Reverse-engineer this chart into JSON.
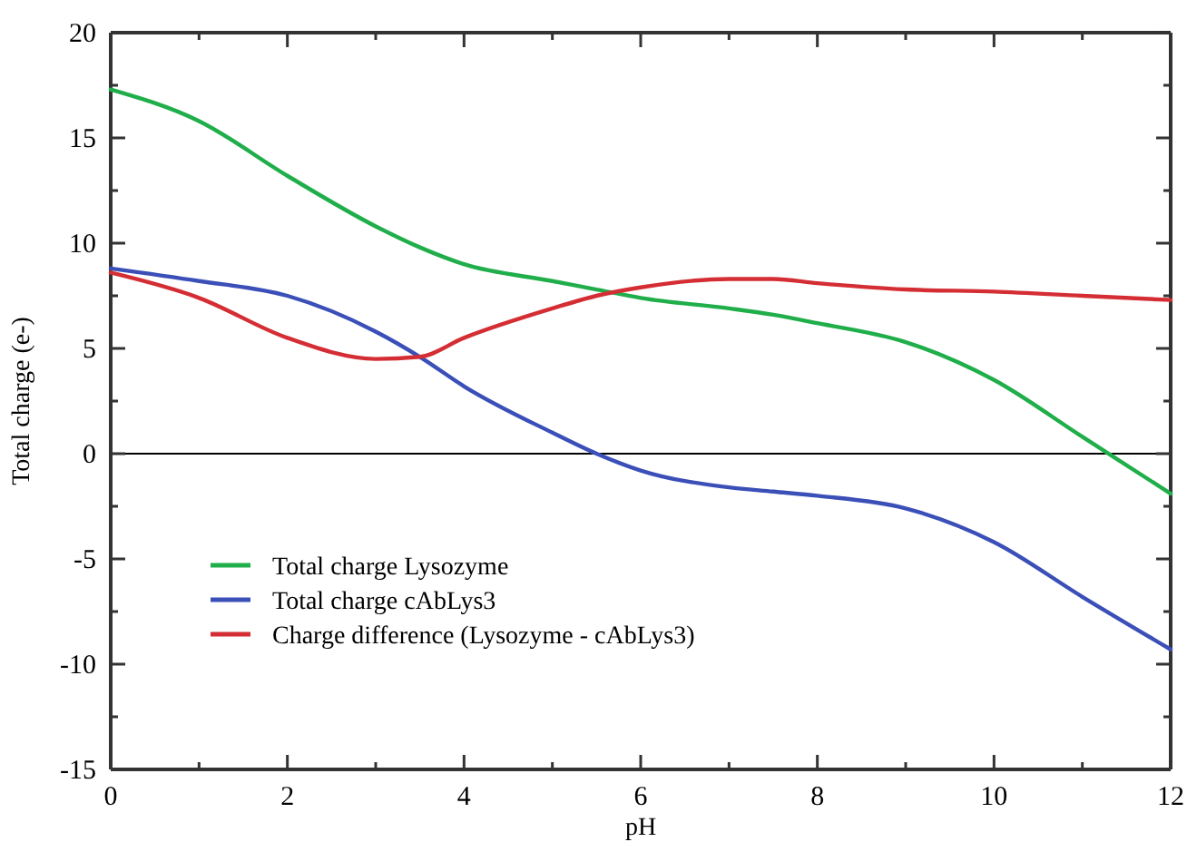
{
  "chart_data": {
    "type": "line",
    "xlabel": "pH",
    "ylabel": "Total charge (e-)",
    "xlim": [
      0,
      12
    ],
    "ylim": [
      -15,
      20
    ],
    "xticks": [
      0,
      {
        "value": 1,
        "label": null
      },
      2,
      {
        "value": 3,
        "label": null
      },
      4,
      {
        "value": 5,
        "label": null
      },
      6,
      {
        "value": 7,
        "label": null
      },
      8,
      {
        "value": 9,
        "label": null
      },
      10,
      {
        "value": 11,
        "label": null
      },
      12
    ],
    "yticks": [
      -15,
      {
        "value": -12.5,
        "label": null
      },
      -10,
      {
        "value": -7.5,
        "label": null
      },
      -5,
      {
        "value": -2.5,
        "label": null
      },
      0,
      {
        "value": 2.5,
        "label": null
      },
      5,
      {
        "value": 7.5,
        "label": null
      },
      10,
      {
        "value": 12.5,
        "label": null
      },
      15,
      {
        "value": 17.5,
        "label": null
      },
      20
    ],
    "x": [
      0,
      1,
      2,
      3,
      3.5,
      4,
      5,
      5.5,
      6,
      7,
      7.5,
      8,
      9,
      10,
      11,
      12
    ],
    "series": [
      {
        "name": "Total charge Lysozyme",
        "color": "#1fae4a",
        "values": [
          17.3,
          15.8,
          13.2,
          10.8,
          9.8,
          9.0,
          8.2,
          7.8,
          7.4,
          6.9,
          6.6,
          6.2,
          5.3,
          3.5,
          0.8,
          -1.9
        ]
      },
      {
        "name": "Total charge cAbLys3",
        "color": "#3b4fb8",
        "values": [
          8.8,
          8.2,
          7.5,
          5.8,
          4.6,
          3.2,
          1.0,
          0,
          -0.8,
          -1.6,
          -1.8,
          -2.0,
          -2.6,
          -4.2,
          -6.8,
          -9.3
        ]
      },
      {
        "name": "Charge difference (Lysozyme - cAbLys3)",
        "color": "#d42e34",
        "values": [
          8.6,
          7.4,
          5.5,
          4.5,
          4.6,
          5.5,
          6.9,
          7.5,
          7.9,
          8.3,
          8.3,
          8.1,
          7.8,
          7.7,
          7.5,
          7.3
        ]
      }
    ],
    "ref_lines": [
      {
        "axis": "y",
        "value": 0,
        "color": "#000000"
      }
    ],
    "legend": "bottom left",
    "grid": false,
    "marker": "none",
    "line_style": "solid"
  }
}
